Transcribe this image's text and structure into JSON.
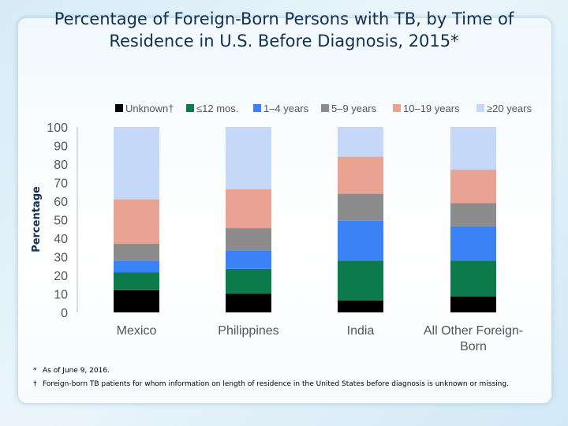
{
  "title": "Percentage of Foreign-Born Persons with TB, by Time of Residence in U.S. Before Diagnosis, 2015*",
  "footnotes": [
    {
      "mark": "*",
      "text": "As of June 9, 2016."
    },
    {
      "mark": "†",
      "text": "Foreign-born TB patients for whom information on length of residence in the United States before diagnosis is unknown or missing."
    }
  ],
  "chart_data": {
    "type": "bar",
    "stacked": true,
    "ylabel": "Percentage",
    "ylim": [
      0,
      100
    ],
    "yticks": [
      0,
      10,
      20,
      30,
      40,
      50,
      60,
      70,
      80,
      90,
      100
    ],
    "legend_position": "top",
    "categories": [
      "Mexico",
      "Philippines",
      "India",
      "All Other Foreign-Born"
    ],
    "series": [
      {
        "name": "Unknown†",
        "color": "#000000",
        "values": [
          12,
          10,
          6.5,
          8.5
        ]
      },
      {
        "name": "≤12 mos.",
        "color": "#0c7a4a",
        "values": [
          9.5,
          13.5,
          21.5,
          19.5
        ]
      },
      {
        "name": "1–4 years",
        "color": "#3b82f6",
        "values": [
          6.5,
          10,
          21.5,
          18.5
        ]
      },
      {
        "name": "5–9 years",
        "color": "#8c8c8c",
        "values": [
          9,
          12,
          14.5,
          12.5
        ]
      },
      {
        "name": "10–19 years",
        "color": "#e8a393",
        "values": [
          24,
          21,
          20,
          18
        ]
      },
      {
        "name": "≥20 years",
        "color": "#c6d8f8",
        "values": [
          39,
          33.5,
          16,
          23
        ]
      }
    ]
  }
}
